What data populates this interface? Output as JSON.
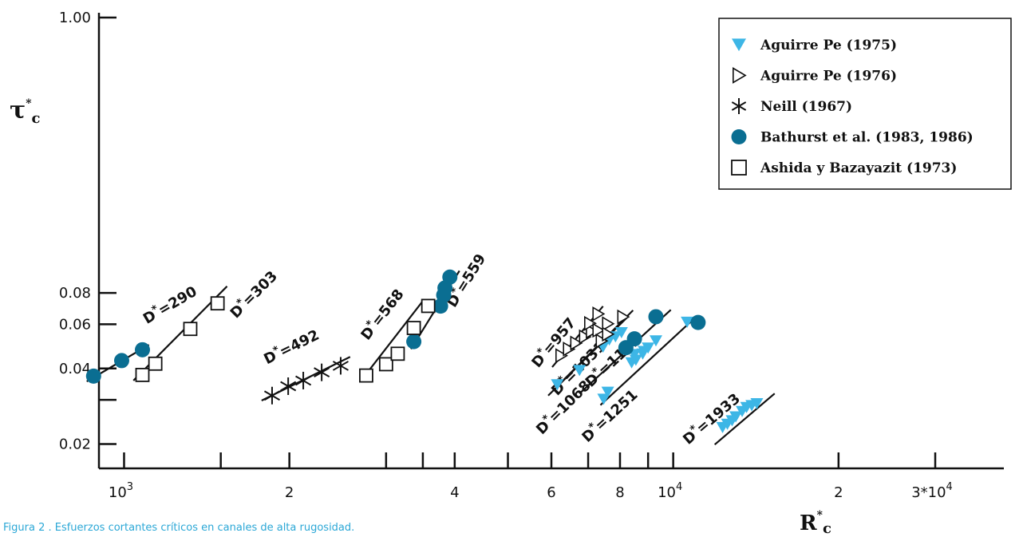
{
  "caption": "Figura 2 . Esfuerzos cortantes críticos en canales de alta rugosidad.",
  "colors": {
    "cyan": "#3db6e6",
    "teal": "#0a6e92",
    "axis": "#111111"
  },
  "chart_data": {
    "type": "scatter",
    "x_scale": "log",
    "y_scale": "log",
    "xlim": [
      900,
      40000
    ],
    "ylim": [
      0.016,
      1.0
    ],
    "xlabel": "R",
    "xlabel_sup": "*",
    "xlabel_sub": "c",
    "ylabel": "τ",
    "ylabel_sup": "*",
    "ylabel_sub": "c",
    "x_major_ticks": [
      {
        "value": 1000,
        "label": "10",
        "sup": "3"
      },
      {
        "value": 2000,
        "label": "2",
        "sup": ""
      },
      {
        "value": 4000,
        "label": "4",
        "sup": ""
      },
      {
        "value": 6000,
        "label": "6",
        "sup": ""
      },
      {
        "value": 8000,
        "label": "8",
        "sup": ""
      },
      {
        "value": 10000,
        "label": "10",
        "sup": "4"
      },
      {
        "value": 20000,
        "label": "2",
        "sup": ""
      },
      {
        "value": 30000,
        "label": "3*10",
        "sup": "4"
      }
    ],
    "x_minor_ticks": [
      1500,
      3000,
      3500,
      5000,
      7000,
      9000
    ],
    "y_major_ticks": [
      {
        "value": 1.0,
        "label": "1.00"
      },
      {
        "value": 0.08,
        "label": "0.08"
      },
      {
        "value": 0.06,
        "label": "0.06"
      },
      {
        "value": 0.04,
        "label": "0.04"
      },
      {
        "value": 0.02,
        "label": "0.02"
      }
    ],
    "y_minor_ticks": [
      0.03
    ],
    "legend": {
      "position": "top-right"
    },
    "series": [
      {
        "name": "Aguirre Pe (1975)",
        "marker": "triangle-down-filled",
        "color": "#3db6e6",
        "points": [
          [
            6150,
            0.0345
          ],
          [
            6750,
            0.0393
          ],
          [
            7450,
            0.0487
          ],
          [
            7650,
            0.052
          ],
          [
            7850,
            0.0535
          ],
          [
            8050,
            0.0556
          ],
          [
            7600,
            0.0322
          ],
          [
            7470,
            0.0302
          ],
          [
            8400,
            0.0422
          ],
          [
            8550,
            0.0432
          ],
          [
            8500,
            0.0455
          ],
          [
            8850,
            0.0468
          ],
          [
            8800,
            0.0457
          ],
          [
            9000,
            0.0483
          ],
          [
            9300,
            0.0516
          ],
          [
            10600,
            0.0612
          ],
          [
            12300,
            0.0233
          ],
          [
            12550,
            0.024
          ],
          [
            12800,
            0.0248
          ],
          [
            13000,
            0.0257
          ],
          [
            13350,
            0.027
          ],
          [
            13600,
            0.028
          ],
          [
            14200,
            0.029
          ],
          [
            13900,
            0.0285
          ]
        ]
      },
      {
        "name": "Aguirre Pe (1976)",
        "marker": "triangle-right-open",
        "color": "#111111",
        "points": [
          [
            6250,
            0.045
          ],
          [
            6450,
            0.0478
          ],
          [
            6650,
            0.0505
          ],
          [
            6900,
            0.0535
          ],
          [
            7100,
            0.0562
          ],
          [
            7050,
            0.0605
          ],
          [
            7300,
            0.0568
          ],
          [
            7600,
            0.0603
          ],
          [
            7400,
            0.0515
          ],
          [
            7600,
            0.0548
          ],
          [
            8100,
            0.0642
          ],
          [
            7300,
            0.066
          ]
        ]
      },
      {
        "name": "Neill (1967)",
        "marker": "asterisk",
        "color": "#111111",
        "points": [
          [
            1860,
            0.0312
          ],
          [
            1990,
            0.034
          ],
          [
            2120,
            0.0358
          ],
          [
            2290,
            0.0386
          ],
          [
            2480,
            0.041
          ]
        ]
      },
      {
        "name": "Bathurst et al. (1983, 1986)",
        "marker": "circle-filled",
        "color": "#0a6e92",
        "points": [
          [
            880,
            0.0373
          ],
          [
            990,
            0.043
          ],
          [
            1080,
            0.0475
          ],
          [
            3370,
            0.0512
          ],
          [
            3770,
            0.0709
          ],
          [
            3820,
            0.0784
          ],
          [
            3840,
            0.0837
          ],
          [
            3920,
            0.0925
          ],
          [
            8200,
            0.0484
          ],
          [
            8500,
            0.0525
          ],
          [
            9300,
            0.0643
          ],
          [
            11100,
            0.061
          ]
        ]
      },
      {
        "name": "Ashida y Bazayazit (1973)",
        "marker": "square-open",
        "color": "#111111",
        "points": [
          [
            1080,
            0.0377
          ],
          [
            1140,
            0.0418
          ],
          [
            1320,
            0.0575
          ],
          [
            1480,
            0.0727
          ],
          [
            2760,
            0.0375
          ],
          [
            3000,
            0.0416
          ],
          [
            3150,
            0.0458
          ],
          [
            3370,
            0.058
          ],
          [
            3580,
            0.071
          ]
        ]
      }
    ],
    "fit_lines": [
      {
        "label": "D",
        "sup": "*",
        "value": "=290",
        "from": [
          855,
          0.0355
        ],
        "to": [
          1110,
          0.0497
        ],
        "label_at": [
          1100,
          0.06
        ]
      },
      {
        "label": "D",
        "sup": "*",
        "value": "=303",
        "from": [
          1040,
          0.0358
        ],
        "to": [
          1540,
          0.085
        ],
        "label_at": [
          1600,
          0.063
        ]
      },
      {
        "label": "D",
        "sup": "*",
        "value": "=492",
        "from": [
          1780,
          0.0298
        ],
        "to": [
          2580,
          0.0445
        ],
        "label_at": [
          1820,
          0.0415
        ]
      },
      {
        "label": "D",
        "sup": "*",
        "value": "=568",
        "from": [
          2720,
          0.0365
        ],
        "to": [
          3520,
          0.0755
        ],
        "label_at": [
          2780,
          0.0515
        ]
      },
      {
        "label": "D",
        "sup": "*",
        "value": "=559",
        "from": [
          3330,
          0.0478
        ],
        "to": [
          4080,
          0.098
        ],
        "label_at": [
          4000,
          0.0695
        ]
      },
      {
        "label": "D",
        "sup": "*",
        "value": "=957",
        "from": [
          6020,
          0.0405
        ],
        "to": [
          7450,
          0.0708
        ],
        "label_at": [
          5680,
          0.04
        ]
      },
      {
        "label": "D",
        "sup": "*",
        "value": "=1031",
        "from": [
          6150,
          0.034
        ],
        "to": [
          8450,
          0.0682
        ],
        "label_at": [
          6150,
          0.031
        ]
      },
      {
        "label": "D",
        "sup": "*",
        "value": "=1068",
        "from": [
          5920,
          0.0312
        ],
        "to": [
          8250,
          0.064
        ],
        "label_at": [
          5770,
          0.0217
        ]
      },
      {
        "label": "D",
        "sup": "*",
        "value": "=1142",
        "from": [
          6750,
          0.0318
        ],
        "to": [
          9900,
          0.0685
        ],
        "label_at": [
          7080,
          0.0335
        ]
      },
      {
        "label": "D",
        "sup": "*",
        "value": "=1251",
        "from": [
          7370,
          0.0286
        ],
        "to": [
          11000,
          0.0642
        ],
        "label_at": [
          6980,
          0.0202
        ]
      },
      {
        "label": "D",
        "sup": "*",
        "value": "=1933",
        "from": [
          11900,
          0.0199
        ],
        "to": [
          15300,
          0.0318
        ],
        "label_at": [
          10650,
          0.0198
        ]
      }
    ]
  }
}
